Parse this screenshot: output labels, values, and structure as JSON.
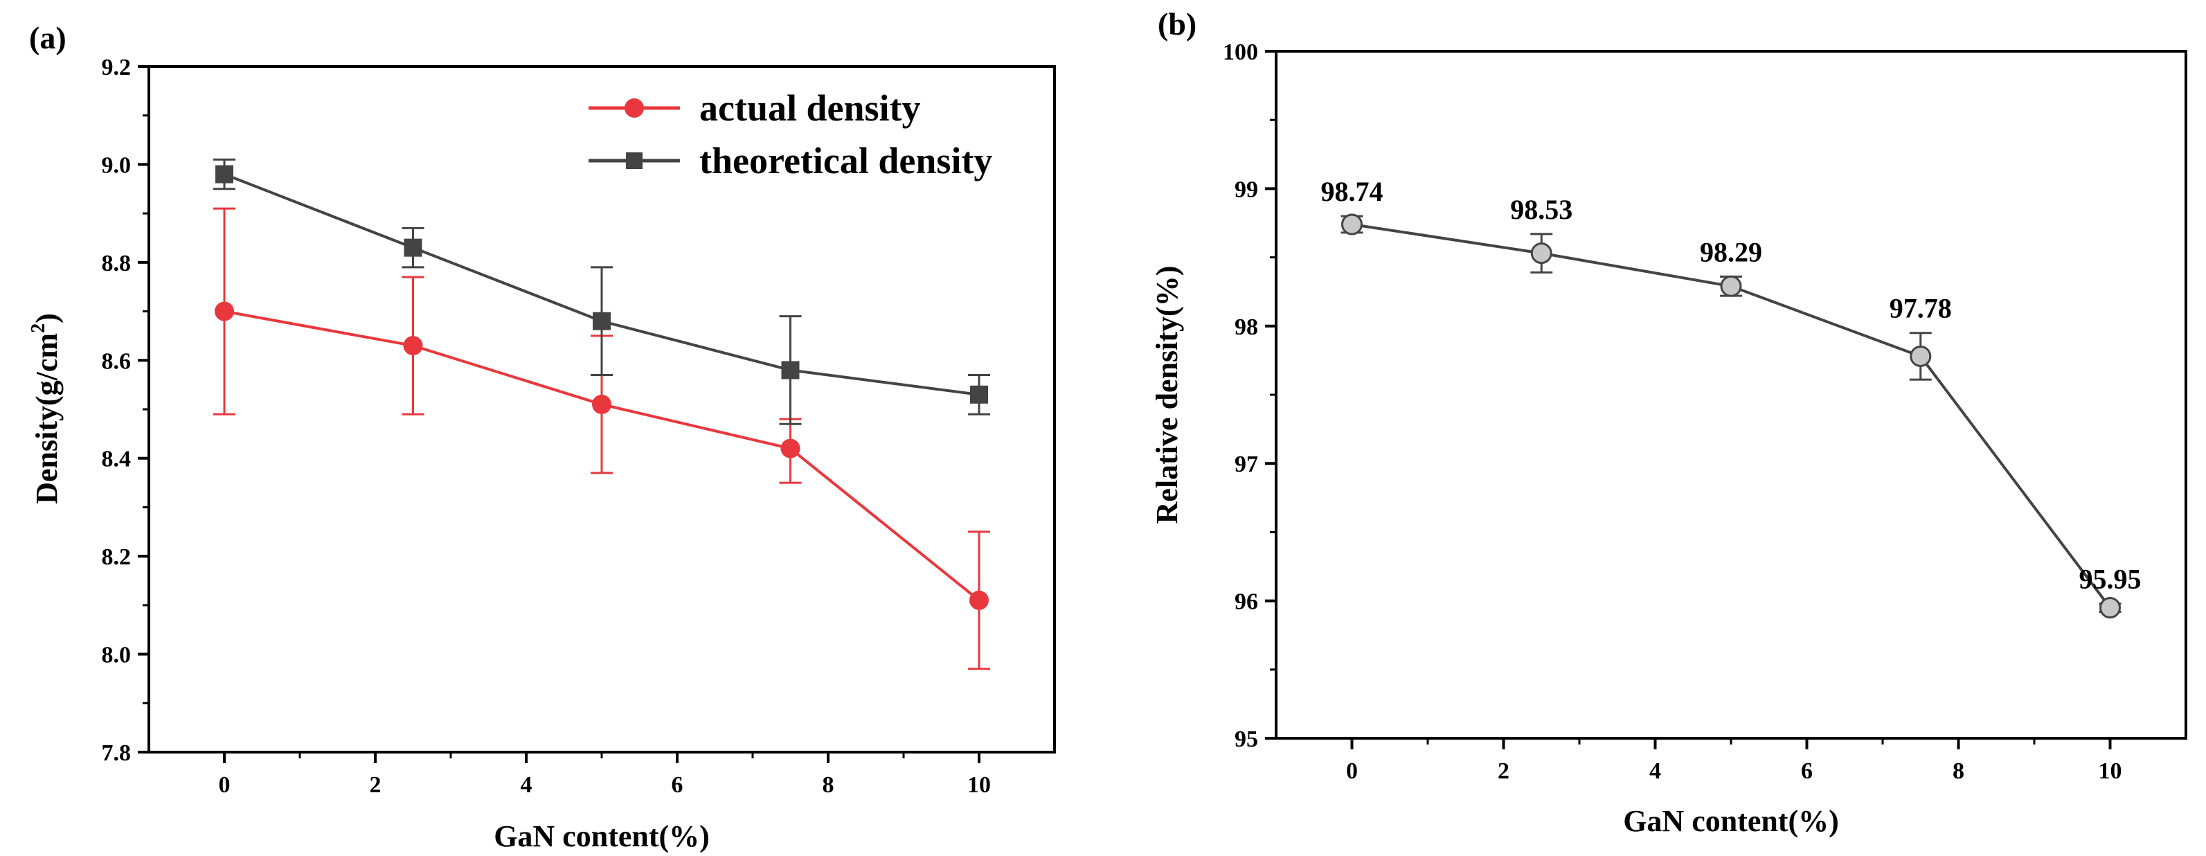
{
  "chart_data": [
    {
      "panel": "(a)",
      "type": "line",
      "xlabel": "GaN content(%)",
      "ylabel": "Density(g/cm",
      "ylabel_superscript": "2",
      "ylabel_suffix": ")",
      "xlim": [
        -1,
        11
      ],
      "ylim": [
        7.8,
        9.2
      ],
      "xticks": [
        0,
        2,
        4,
        6,
        8,
        10
      ],
      "yticks": [
        7.8,
        8.0,
        8.2,
        8.4,
        8.6,
        8.8,
        9.0,
        9.2
      ],
      "ytick_labels": [
        "7.8",
        "8.0",
        "8.2",
        "8.4",
        "8.6",
        "8.8",
        "9.0",
        "9.2"
      ],
      "legend_position": "top-right",
      "series": [
        {
          "name": "actual density",
          "color": "#e8383d",
          "marker": "circle",
          "x": [
            0,
            2.5,
            5,
            7.5,
            10
          ],
          "values": [
            8.7,
            8.63,
            8.51,
            8.42,
            8.11
          ],
          "err_low": [
            8.49,
            8.49,
            8.37,
            8.35,
            7.97
          ],
          "err_high": [
            8.91,
            8.77,
            8.65,
            8.48,
            8.25
          ]
        },
        {
          "name": "theoretical density",
          "color": "#444444",
          "marker": "square",
          "x": [
            0,
            2.5,
            5,
            7.5,
            10
          ],
          "values": [
            8.98,
            8.83,
            8.68,
            8.58,
            8.53
          ],
          "err_low": [
            8.95,
            8.79,
            8.57,
            8.47,
            8.49
          ],
          "err_high": [
            9.01,
            8.87,
            8.79,
            8.69,
            8.57
          ]
        }
      ]
    },
    {
      "panel": "(b)",
      "type": "line",
      "xlabel": "GaN content(%)",
      "ylabel": "Relative density(%)",
      "xlim": [
        -1,
        11
      ],
      "ylim": [
        95,
        100
      ],
      "xticks": [
        0,
        2,
        4,
        6,
        8,
        10
      ],
      "yticks": [
        95,
        96,
        97,
        98,
        99,
        100
      ],
      "ytick_labels": [
        "95",
        "96",
        "97",
        "98",
        "99",
        "100"
      ],
      "series": [
        {
          "name": "relative density",
          "color": "#444444",
          "marker_fill": "#c8c8c8",
          "marker": "circle",
          "x": [
            0,
            2.5,
            5,
            7.5,
            10
          ],
          "values": [
            98.74,
            98.53,
            98.29,
            97.78,
            95.95
          ],
          "labels": [
            "98.74",
            "98.53",
            "98.29",
            "97.78",
            "95.95"
          ],
          "err_low": [
            98.68,
            98.39,
            98.22,
            97.61,
            95.92
          ],
          "err_high": [
            98.8,
            98.67,
            98.36,
            97.95,
            95.98
          ]
        }
      ]
    }
  ]
}
